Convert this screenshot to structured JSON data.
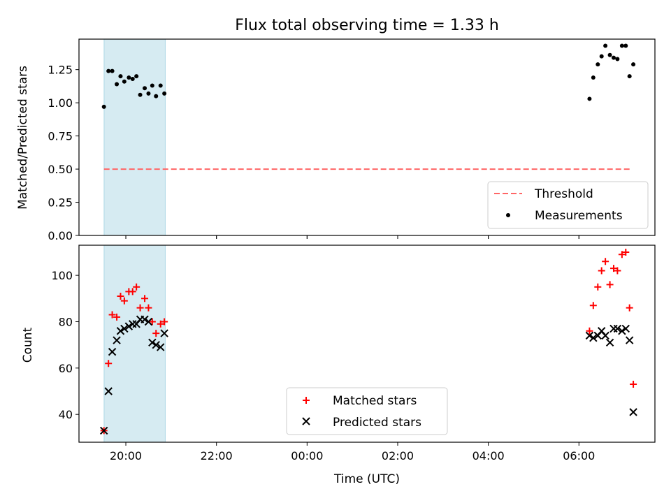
{
  "figure": {
    "title": "Flux total observing time = 1.33 h",
    "xlabel": "Time (UTC)",
    "xticks": [
      "20:00",
      "22:00",
      "00:00",
      "02:00",
      "04:00",
      "06:00"
    ],
    "highlight_band": {
      "start_hours": -0.48,
      "end_hours": 0.87,
      "color": "#add8e6"
    }
  },
  "chart_data": [
    {
      "type": "scatter",
      "title": "Flux total observing time = 1.33 h",
      "xlabel": "",
      "ylabel": "Matched/Predicted stars",
      "ylim": [
        0.0,
        1.48
      ],
      "yticks": [
        "0.00",
        "0.25",
        "0.50",
        "0.75",
        "1.00",
        "1.25"
      ],
      "threshold": {
        "name": "Threshold",
        "value": 0.5,
        "x_range": [
          "19:31",
          "07:09"
        ],
        "color": "#ff6666"
      },
      "series": [
        {
          "name": "Measurements",
          "color": "#000000",
          "x": [
            "19:31",
            "19:37",
            "19:42",
            "19:48",
            "19:53",
            "19:58",
            "20:04",
            "20:09",
            "20:14",
            "20:19",
            "20:25",
            "20:30",
            "20:35",
            "20:40",
            "20:46",
            "20:51",
            "06:14",
            "06:19",
            "06:25",
            "06:30",
            "06:35",
            "06:41",
            "06:46",
            "06:51",
            "06:57",
            "07:02",
            "07:07",
            "07:12"
          ],
          "y": [
            0.97,
            1.24,
            1.24,
            1.14,
            1.2,
            1.16,
            1.19,
            1.18,
            1.2,
            1.06,
            1.11,
            1.07,
            1.13,
            1.05,
            1.13,
            1.07,
            1.03,
            1.19,
            1.29,
            1.35,
            1.43,
            1.36,
            1.34,
            1.33,
            1.43,
            1.43,
            1.2,
            1.29
          ]
        }
      ],
      "legend": {
        "placement": "lower-right",
        "entries": [
          "Threshold",
          "Measurements"
        ]
      }
    },
    {
      "type": "scatter",
      "xlabel": "Time (UTC)",
      "ylabel": "Count",
      "ylim": [
        28.0,
        113.0
      ],
      "yticks": [
        "40",
        "60",
        "80",
        "100"
      ],
      "series": [
        {
          "name": "Matched stars",
          "color": "#ff0000",
          "marker": "plus",
          "x": [
            "19:31",
            "19:37",
            "19:42",
            "19:48",
            "19:53",
            "19:58",
            "20:04",
            "20:09",
            "20:14",
            "20:19",
            "20:25",
            "20:30",
            "20:35",
            "20:40",
            "20:46",
            "20:51",
            "06:14",
            "06:19",
            "06:25",
            "06:30",
            "06:35",
            "06:41",
            "06:46",
            "06:51",
            "06:57",
            "07:02",
            "07:07",
            "07:12"
          ],
          "y": [
            33,
            62,
            83,
            82,
            91,
            89,
            93,
            93,
            95,
            86,
            90,
            86,
            80,
            75,
            79,
            80,
            76,
            87,
            95,
            102,
            106,
            96,
            103,
            102,
            109,
            110,
            86,
            53
          ]
        },
        {
          "name": "Predicted stars",
          "color": "#000000",
          "marker": "x",
          "x": [
            "19:31",
            "19:37",
            "19:42",
            "19:48",
            "19:53",
            "19:58",
            "20:04",
            "20:09",
            "20:14",
            "20:19",
            "20:25",
            "20:30",
            "20:35",
            "20:40",
            "20:46",
            "20:51",
            "06:14",
            "06:19",
            "06:25",
            "06:30",
            "06:35",
            "06:41",
            "06:46",
            "06:51",
            "06:57",
            "07:02",
            "07:07",
            "07:12"
          ],
          "y": [
            33,
            50,
            67,
            72,
            76,
            77,
            78,
            79,
            79,
            81,
            81,
            80,
            71,
            70,
            69,
            75,
            74,
            73,
            74,
            76,
            74,
            71,
            77,
            77,
            76,
            77,
            72,
            41
          ]
        }
      ],
      "legend": {
        "placement": "lower-center",
        "entries": [
          "Matched stars",
          "Predicted stars"
        ]
      }
    }
  ]
}
